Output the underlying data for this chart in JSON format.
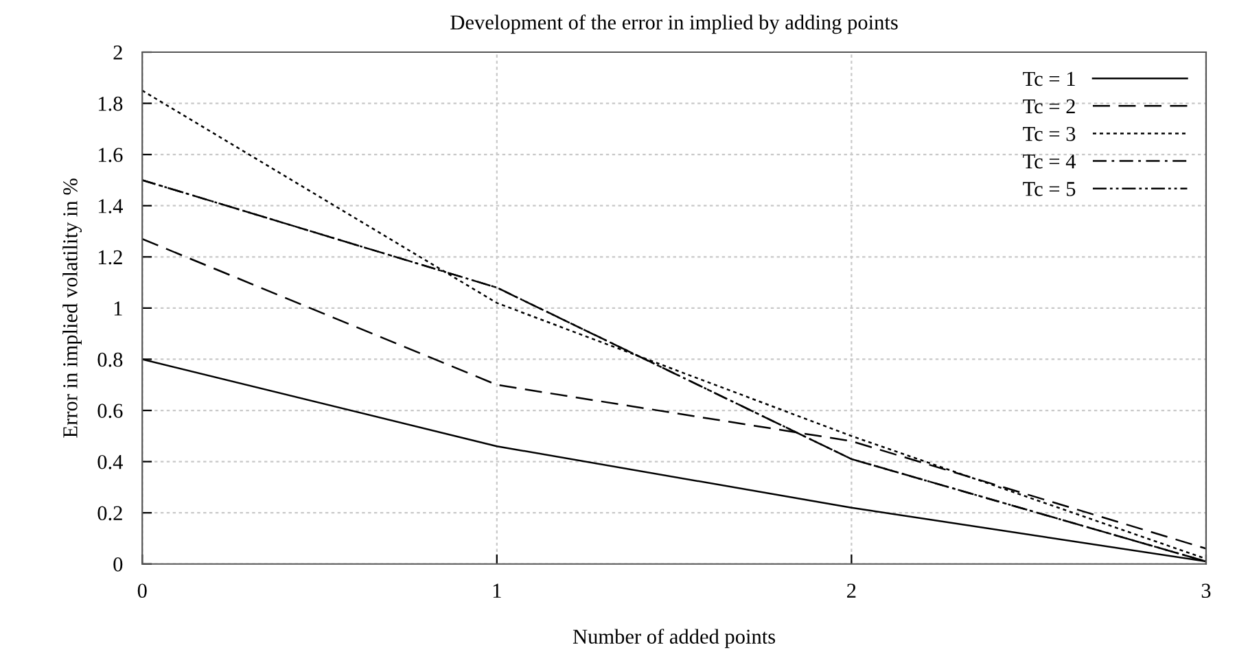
{
  "chart_data": {
    "type": "line",
    "title": "Development of the error in implied by adding points",
    "xlabel": "Number of added points",
    "ylabel": "Error in implied volatility in %",
    "x": [
      0,
      1,
      2,
      3
    ],
    "series": [
      {
        "name": "Tc = 1",
        "color": "#000000",
        "line_style": "solid",
        "values": [
          0.8,
          0.46,
          0.22,
          0.01
        ]
      },
      {
        "name": "Tc = 2",
        "color": "#000000",
        "line_style": "dashed",
        "values": [
          1.27,
          0.7,
          0.48,
          0.06
        ]
      },
      {
        "name": "Tc = 3",
        "color": "#000000",
        "line_style": "dotted",
        "values": [
          1.85,
          1.02,
          0.5,
          0.02
        ]
      },
      {
        "name": "Tc = 4",
        "color": "#000000",
        "line_style": "dashdot",
        "values": [
          1.5,
          1.08,
          0.41,
          0.01
        ]
      },
      {
        "name": "Tc = 5",
        "color": "#000000",
        "line_style": "dashdotdot",
        "values": [
          1.5,
          1.08,
          0.41,
          0.01
        ]
      }
    ],
    "xlim": [
      0,
      3
    ],
    "xticks": [
      0,
      1,
      2,
      3
    ],
    "ylim": [
      0,
      2
    ],
    "yticks": [
      0,
      0.2,
      0.4,
      0.6,
      0.8,
      1,
      1.2,
      1.4,
      1.6,
      1.8,
      2
    ],
    "grid": true,
    "legend": "top right",
    "marker": "none"
  }
}
